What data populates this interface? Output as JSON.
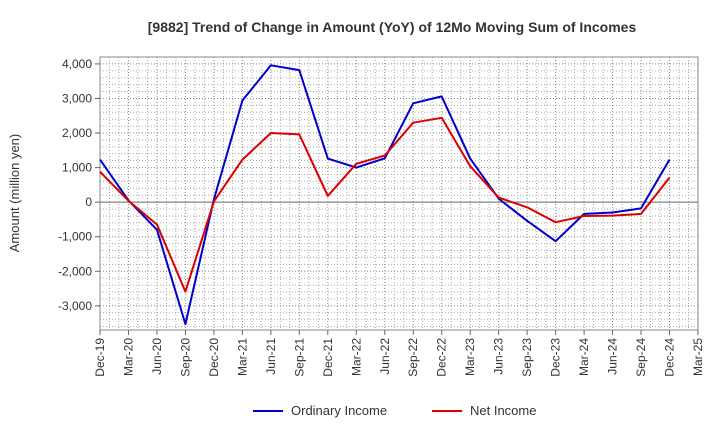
{
  "chart_data": {
    "type": "line",
    "title": "[9882]  Trend of Change in Amount (YoY) of 12Mo Moving Sum of Incomes",
    "xlabel": "",
    "ylabel": "Amount (million yen)",
    "ylim": [
      -3700,
      4200
    ],
    "yticks": [
      4000,
      3000,
      2000,
      1000,
      0,
      -1000,
      -2000,
      -3000
    ],
    "ytick_labels": [
      "4,000",
      "3,000",
      "2,000",
      "1,000",
      "0",
      "-1,000",
      "-2,000",
      "-3,000"
    ],
    "categories": [
      "Dec-19",
      "Mar-20",
      "Jun-20",
      "Sep-20",
      "Dec-20",
      "Mar-21",
      "Jun-21",
      "Sep-21",
      "Dec-21",
      "Mar-22",
      "Jun-22",
      "Sep-22",
      "Dec-22",
      "Mar-23",
      "Jun-23",
      "Sep-23",
      "Dec-23",
      "Mar-24",
      "Jun-24",
      "Sep-24",
      "Dec-24",
      "Mar-25"
    ],
    "series": [
      {
        "name": "Ordinary Income",
        "color": "#0000cc",
        "values": [
          1230,
          50,
          -800,
          -3530,
          80,
          2940,
          3960,
          3820,
          1260,
          1000,
          1270,
          2860,
          3060,
          1260,
          100,
          -540,
          -1130,
          -340,
          -300,
          -180,
          1230,
          null
        ]
      },
      {
        "name": "Net Income",
        "color": "#dd0000",
        "values": [
          880,
          40,
          -650,
          -2590,
          20,
          1230,
          2000,
          1960,
          180,
          1110,
          1350,
          2300,
          2440,
          1040,
          130,
          -150,
          -580,
          -400,
          -390,
          -340,
          710,
          null
        ]
      }
    ],
    "legend_position": "bottom-center",
    "grid": true
  }
}
